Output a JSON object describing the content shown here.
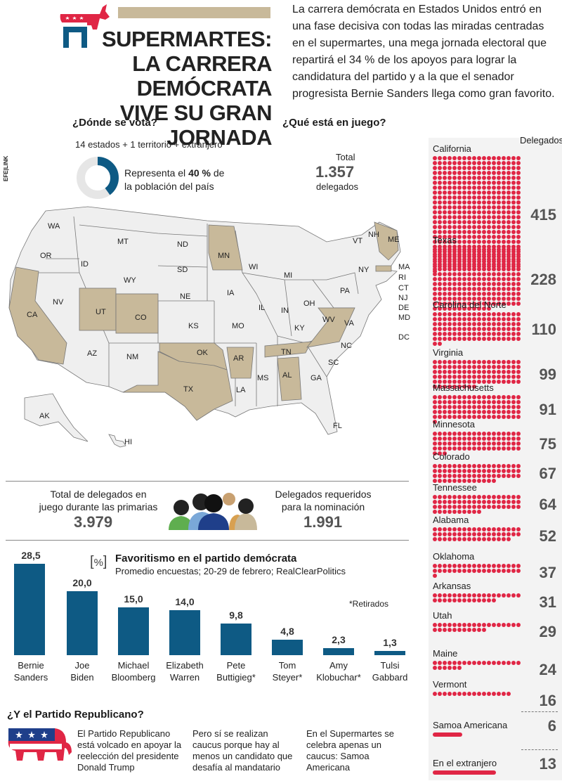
{
  "header": {
    "title_line1": "SUPERMARTES:",
    "title_line2": "LA CARRERA DEMÓCRATA",
    "title_line3": "VIVE SU GRAN JORNADA",
    "intro": "La carrera demócrata en Estados Unidos entró en una fase decisiva con todas las miradas centradas en el supermartes, una mega jornada electoral que repartirá el 34 % de los apoyos para lograr la candidatura del partido y a la que el senador progresista Bernie Sanders llega como gran favorito.",
    "agency": "EFE|LINK"
  },
  "where": {
    "heading": "¿Dónde se vota?",
    "subtitle": "14 estados + 1 territorio + extranjero",
    "donut_text_a": "Representa el ",
    "donut_pct": "40 %",
    "donut_text_b": " de",
    "donut_text_c": "la población del país",
    "donut_fraction": 0.4
  },
  "stake": {
    "heading": "¿Qué está en juego?",
    "total_label": "Total",
    "total_value": "1.357",
    "total_unit": "delegados"
  },
  "map_labels": [
    "WA",
    "OR",
    "CA",
    "NV",
    "ID",
    "MT",
    "WY",
    "UT",
    "AZ",
    "CO",
    "NM",
    "ND",
    "SD",
    "NE",
    "KS",
    "OK",
    "TX",
    "MN",
    "IA",
    "MO",
    "AR",
    "LA",
    "WI",
    "IL",
    "MI",
    "IN",
    "OH",
    "KY",
    "TN",
    "MS",
    "AL",
    "GA",
    "FL",
    "SC",
    "NC",
    "VA",
    "WV",
    "PA",
    "NY",
    "VT",
    "NH",
    "ME",
    "MA",
    "RI",
    "CT",
    "NJ",
    "DE",
    "MD",
    "DC",
    "AK",
    "HI"
  ],
  "delegates": {
    "header": "Delegados",
    "states": [
      {
        "name": "California",
        "value": "415",
        "dots": 415
      },
      {
        "name": "Texas",
        "value": "228",
        "dots": 228
      },
      {
        "name": "Carolina del Norte",
        "value": "110",
        "dots": 110
      },
      {
        "name": "Virginia",
        "value": "99",
        "dots": 99
      },
      {
        "name": "Massachusetts",
        "value": "91",
        "dots": 91
      },
      {
        "name": "Minnesota",
        "value": "75",
        "dots": 75
      },
      {
        "name": "Colorado",
        "value": "67",
        "dots": 67
      },
      {
        "name": "Tennessee",
        "value": "64",
        "dots": 64
      },
      {
        "name": "Alabama",
        "value": "52",
        "dots": 52
      },
      {
        "name": "Oklahoma",
        "value": "37",
        "dots": 37
      },
      {
        "name": "Arkansas",
        "value": "31",
        "dots": 31
      },
      {
        "name": "Utah",
        "value": "29",
        "dots": 29
      },
      {
        "name": "Maine",
        "value": "24",
        "dots": 24
      },
      {
        "name": "Vermont",
        "value": "16",
        "dots": 16
      }
    ],
    "extra": [
      {
        "name": "Samoa Americana",
        "value": "6"
      },
      {
        "name": "En el extranjero",
        "value": "13"
      }
    ]
  },
  "totals": {
    "left_label": "Total de delegados en juego durante las primarias",
    "left_value": "3.979",
    "right_label": "Delegados requeridos para la nominación",
    "right_value": "1.991"
  },
  "chart_data": {
    "type": "bar",
    "bracket": "%",
    "title": "Favoritismo en el partido demócrata",
    "subtitle": "Promedio encuestas; 20-29 de febrero; RealClearPolitics",
    "note": "*Retirados",
    "categories": [
      "Bernie Sanders",
      "Joe Biden",
      "Michael Bloomberg",
      "Elizabeth Warren",
      "Pete Buttigieg*",
      "Tom Steyer*",
      "Amy Klobuchar*",
      "Tulsi Gabbard"
    ],
    "category_lines": [
      [
        "Bernie",
        "Sanders"
      ],
      [
        "Joe",
        "Biden"
      ],
      [
        "Michael",
        "Bloomberg"
      ],
      [
        "Elizabeth",
        "Warren"
      ],
      [
        "Pete",
        "Buttigieg*"
      ],
      [
        "Tom",
        "Steyer*"
      ],
      [
        "Amy",
        "Klobuchar*"
      ],
      [
        "Tulsi",
        "Gabbard"
      ]
    ],
    "values": [
      28.5,
      20.0,
      15.0,
      14.0,
      9.8,
      4.8,
      2.3,
      1.3
    ],
    "value_labels": [
      "28,5",
      "20,0",
      "15,0",
      "14,0",
      "9,8",
      "4,8",
      "2,3",
      "1,3"
    ],
    "ylim": [
      0,
      28.5
    ]
  },
  "republican": {
    "heading": "¿Y el Partido Republicano?",
    "col1": "El Partido Republicano está volcado en apoyar la reelección del presidente Donald Trump",
    "col2": "Pero sí se realizan caucus porque hay al menos un candidato que desafía al mandatario",
    "col3": "En el Supermartes se celebra apenas un caucus: Samoa Americana"
  },
  "colors": {
    "tan": "#c8b99a",
    "blue": "#0e5a84",
    "red": "#e02645",
    "map_fill": "#efefef"
  }
}
